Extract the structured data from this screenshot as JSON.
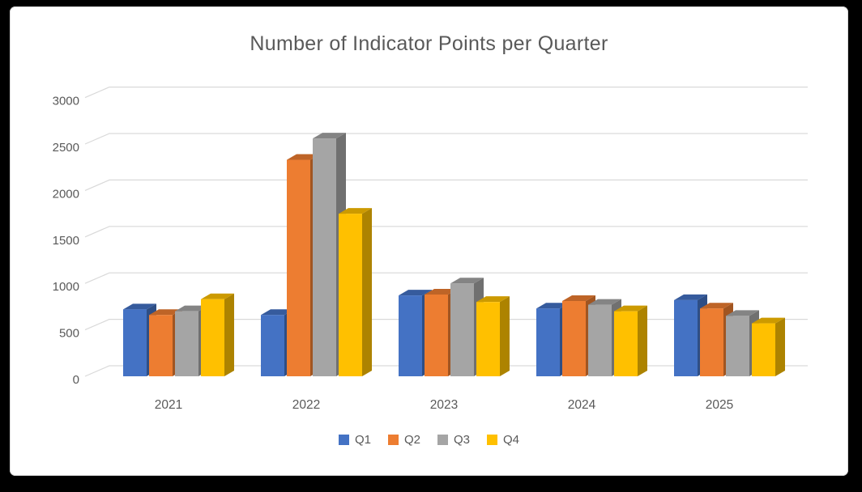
{
  "window": {
    "background_color": "#000000",
    "panel_color": "#FFFFFF"
  },
  "chart_data": {
    "type": "bar",
    "style": "3d-clustered-column",
    "title": "Number of Indicator Points per Quarter",
    "categories": [
      "2021",
      "2022",
      "2023",
      "2024",
      "2025"
    ],
    "series": [
      {
        "name": "Q1",
        "color": "#4472C4",
        "values": [
          720,
          660,
          870,
          730,
          820
        ]
      },
      {
        "name": "Q2",
        "color": "#ED7D31",
        "values": [
          660,
          2330,
          880,
          810,
          730
        ]
      },
      {
        "name": "Q3",
        "color": "#A5A5A5",
        "values": [
          700,
          2560,
          1000,
          770,
          650
        ]
      },
      {
        "name": "Q4",
        "color": "#FFC000",
        "values": [
          830,
          1750,
          800,
          700,
          570
        ]
      }
    ],
    "ylim": [
      0,
      3000
    ],
    "ytick_step": 500,
    "yticks": [
      "0",
      "500",
      "1000",
      "1500",
      "2000",
      "2500",
      "3000"
    ],
    "xlabel": "",
    "ylabel": "",
    "grid": true,
    "legend_position": "bottom",
    "text_color": "#595959",
    "gridline_color": "#D9D9D9"
  }
}
